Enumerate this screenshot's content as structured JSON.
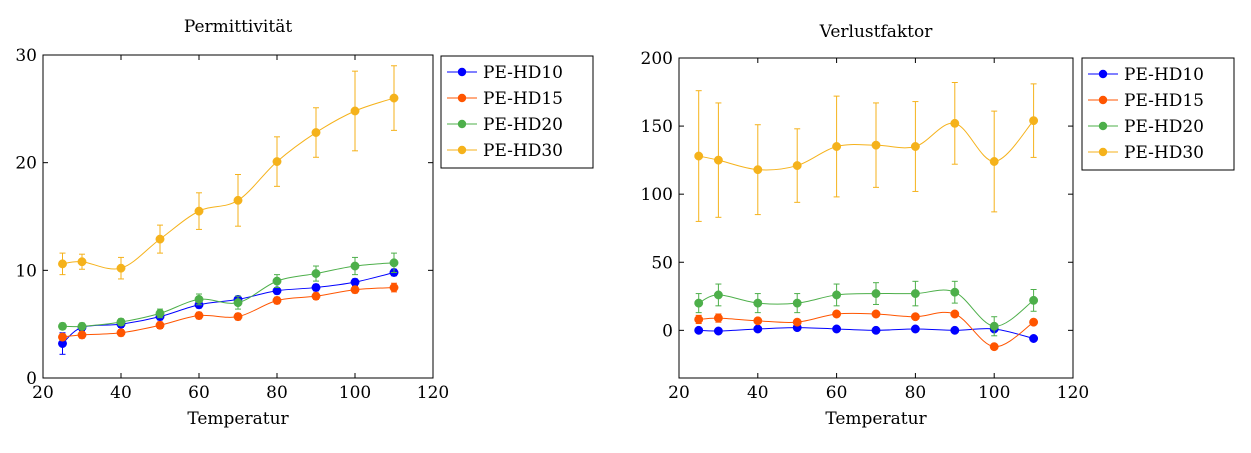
{
  "chart_data": [
    {
      "type": "line",
      "title": "Permittivität",
      "xlabel": "Temperatur",
      "ylabel": "",
      "xlim": [
        20,
        120
      ],
      "ylim": [
        0,
        30
      ],
      "xticks": [
        20,
        40,
        60,
        80,
        100,
        120
      ],
      "yticks": [
        0,
        10,
        20,
        30
      ],
      "x": [
        25,
        30,
        40,
        50,
        60,
        70,
        80,
        90,
        100,
        110
      ],
      "series": [
        {
          "name": "PE-HD10",
          "color": "#0000ff",
          "values": [
            3.2,
            4.7,
            5.0,
            5.7,
            6.8,
            7.3,
            8.1,
            8.4,
            8.9,
            9.8
          ],
          "errors": [
            1.0,
            0.3,
            0.3,
            0.3,
            0.3,
            0.3,
            0.3,
            0.3,
            0.3,
            0.3
          ]
        },
        {
          "name": "PE-HD15",
          "color": "#ff5500",
          "values": [
            3.8,
            4.0,
            4.2,
            4.9,
            5.8,
            5.7,
            7.2,
            7.6,
            8.2,
            8.4
          ],
          "errors": [
            0.3,
            0.3,
            0.3,
            0.3,
            0.3,
            0.3,
            0.3,
            0.3,
            0.3,
            0.4
          ]
        },
        {
          "name": "PE-HD20",
          "color": "#4daf4a",
          "values": [
            4.8,
            4.8,
            5.2,
            6.0,
            7.3,
            7.0,
            9.0,
            9.7,
            10.4,
            10.7
          ],
          "errors": [
            0.3,
            0.3,
            0.3,
            0.4,
            0.5,
            0.6,
            0.6,
            0.7,
            0.8,
            0.9
          ]
        },
        {
          "name": "PE-HD30",
          "color": "#f5b21b",
          "values": [
            10.6,
            10.8,
            10.2,
            12.9,
            15.5,
            16.5,
            20.1,
            22.8,
            24.8,
            26.0
          ],
          "errors": [
            1.0,
            0.7,
            1.0,
            1.3,
            1.7,
            2.4,
            2.3,
            2.3,
            3.7,
            3.0
          ]
        }
      ],
      "legend": "outside-top-right"
    },
    {
      "type": "line",
      "title": "Verlustfaktor",
      "xlabel": "Temperatur",
      "ylabel": "",
      "xlim": [
        20,
        120
      ],
      "ylim": [
        -35,
        200
      ],
      "xticks": [
        20,
        40,
        60,
        80,
        100,
        120
      ],
      "yticks": [
        0,
        50,
        100,
        150,
        200
      ],
      "x": [
        25,
        30,
        40,
        50,
        60,
        70,
        80,
        90,
        100,
        110
      ],
      "series": [
        {
          "name": "PE-HD10",
          "color": "#0000ff",
          "values": [
            0,
            -0.5,
            1,
            2,
            1,
            0,
            1,
            0,
            1,
            -6
          ],
          "errors": [
            0,
            0,
            0,
            0,
            0,
            0,
            0,
            0,
            0,
            0
          ]
        },
        {
          "name": "PE-HD15",
          "color": "#ff5500",
          "values": [
            8,
            9,
            7,
            6,
            12,
            12,
            10,
            12,
            -12,
            6
          ],
          "errors": [
            3,
            3,
            2,
            2,
            2,
            2,
            2,
            2,
            2,
            2
          ]
        },
        {
          "name": "PE-HD20",
          "color": "#4daf4a",
          "values": [
            20,
            26,
            20,
            20,
            26,
            27,
            27,
            28,
            3,
            22
          ],
          "errors": [
            7,
            8,
            7,
            7,
            8,
            8,
            9,
            8,
            7,
            8
          ]
        },
        {
          "name": "PE-HD30",
          "color": "#f5b21b",
          "values": [
            128,
            125,
            118,
            121,
            135,
            136,
            135,
            152,
            124,
            154
          ],
          "errors": [
            48,
            42,
            33,
            27,
            37,
            31,
            33,
            30,
            37,
            27
          ]
        }
      ],
      "legend": "outside-top-right"
    }
  ]
}
